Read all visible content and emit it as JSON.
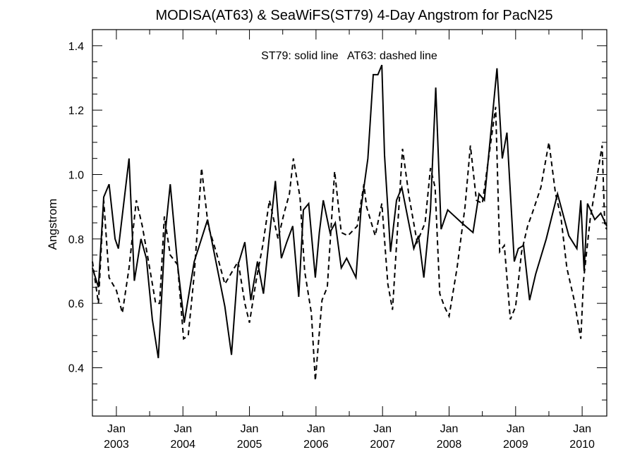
{
  "chart_data": {
    "type": "line",
    "title": "MODISA(AT63) & SeaWiFS(ST79) 4-Day Angstrom for PacN25",
    "annotation": "ST79: solid line   AT63: dashed line",
    "xlabel": "",
    "ylabel": "Angstrom",
    "xlim": [
      2002.64,
      2010.37
    ],
    "ylim": [
      0.25,
      1.45
    ],
    "yticks": [
      0.4,
      0.6,
      0.8,
      1.0,
      1.2,
      1.4
    ],
    "ytick_labels": [
      "0.4",
      "0.6",
      "0.8",
      "1.0",
      "1.2",
      "1.4"
    ],
    "xticks": [
      2003,
      2004,
      2005,
      2006,
      2007,
      2008,
      2009,
      2010
    ],
    "xtick_labels": [
      {
        "month": "Jan",
        "year": "2003"
      },
      {
        "month": "Jan",
        "year": "2004"
      },
      {
        "month": "Jan",
        "year": "2005"
      },
      {
        "month": "Jan",
        "year": "2006"
      },
      {
        "month": "Jan",
        "year": "2007"
      },
      {
        "month": "Jan",
        "year": "2008"
      },
      {
        "month": "Jan",
        "year": "2009"
      },
      {
        "month": "Jan",
        "year": "2010"
      }
    ],
    "grid": false,
    "series": [
      {
        "name": "ST79",
        "style": "solid",
        "color": "#000000",
        "x": [
          2002.64,
          2002.73,
          2002.81,
          2002.89,
          2002.98,
          2003.03,
          2003.19,
          2003.27,
          2003.37,
          2003.45,
          2003.54,
          2003.63,
          2003.73,
          2003.81,
          2003.92,
          2004.02,
          2004.17,
          2004.37,
          2004.63,
          2004.73,
          2004.83,
          2004.93,
          2005.02,
          2005.12,
          2005.21,
          2005.29,
          2005.39,
          2005.48,
          2005.56,
          2005.65,
          2005.74,
          2005.81,
          2005.89,
          2005.99,
          2006.05,
          2006.11,
          2006.21,
          2006.29,
          2006.38,
          2006.46,
          2006.6,
          2006.68,
          2006.78,
          2006.86,
          2006.93,
          2006.99,
          2007.03,
          2007.12,
          2007.21,
          2007.29,
          2007.47,
          2007.54,
          2007.62,
          2007.72,
          2007.8,
          2007.88,
          2007.98,
          2008.19,
          2008.36,
          2008.45,
          2008.53,
          2008.72,
          2008.8,
          2008.87,
          2008.98,
          2009.04,
          2009.12,
          2009.21,
          2009.3,
          2009.46,
          2009.63,
          2009.8,
          2009.92,
          2009.98,
          2010.03,
          2010.08,
          2010.19,
          2010.28,
          2010.37
        ],
        "y": [
          0.71,
          0.65,
          0.93,
          0.97,
          0.8,
          0.77,
          1.05,
          0.67,
          0.8,
          0.74,
          0.55,
          0.43,
          0.81,
          0.97,
          0.72,
          0.54,
          0.73,
          0.86,
          0.59,
          0.44,
          0.72,
          0.79,
          0.61,
          0.73,
          0.63,
          0.79,
          0.98,
          0.74,
          0.79,
          0.84,
          0.62,
          0.89,
          0.91,
          0.68,
          0.82,
          0.92,
          0.82,
          0.85,
          0.71,
          0.74,
          0.68,
          0.9,
          1.05,
          1.31,
          1.31,
          1.34,
          1.06,
          0.76,
          0.92,
          0.96,
          0.77,
          0.81,
          0.68,
          0.89,
          1.27,
          0.83,
          0.89,
          0.85,
          0.82,
          0.94,
          0.92,
          1.33,
          1.05,
          1.13,
          0.73,
          0.77,
          0.78,
          0.61,
          0.69,
          0.8,
          0.94,
          0.81,
          0.77,
          0.92,
          0.7,
          0.91,
          0.86,
          0.88,
          0.84
        ]
      },
      {
        "name": "AT63",
        "style": "dashed",
        "color": "#000000",
        "x": [
          2002.64,
          2002.73,
          2002.81,
          2002.89,
          2003.0,
          2003.09,
          2003.19,
          2003.3,
          2003.39,
          2003.5,
          2003.59,
          2003.65,
          2003.72,
          2003.81,
          2003.92,
          2004.01,
          2004.08,
          2004.17,
          2004.28,
          2004.38,
          2004.5,
          2004.63,
          2004.83,
          2004.93,
          2005.0,
          2005.1,
          2005.2,
          2005.3,
          2005.43,
          2005.52,
          2005.6,
          2005.66,
          2005.76,
          2005.83,
          2005.93,
          2005.99,
          2006.09,
          2006.17,
          2006.28,
          2006.38,
          2006.48,
          2006.62,
          2006.72,
          2006.76,
          2006.89,
          2006.99,
          2007.08,
          2007.15,
          2007.3,
          2007.4,
          2007.52,
          2007.64,
          2007.72,
          2007.79,
          2007.86,
          2007.93,
          2008.0,
          2008.12,
          2008.24,
          2008.32,
          2008.41,
          2008.5,
          2008.6,
          2008.7,
          2008.76,
          2008.83,
          2008.92,
          2009.0,
          2009.09,
          2009.18,
          2009.25,
          2009.38,
          2009.5,
          2009.6,
          2009.68,
          2009.77,
          2009.88,
          2009.98,
          2010.02,
          2010.12,
          2010.3,
          2010.34,
          2010.37
        ],
        "y": [
          0.73,
          0.6,
          0.92,
          0.68,
          0.64,
          0.57,
          0.71,
          0.92,
          0.84,
          0.71,
          0.6,
          0.6,
          0.87,
          0.75,
          0.72,
          0.49,
          0.5,
          0.69,
          1.02,
          0.84,
          0.76,
          0.66,
          0.73,
          0.6,
          0.54,
          0.67,
          0.78,
          0.92,
          0.8,
          0.88,
          0.94,
          1.05,
          0.93,
          0.7,
          0.57,
          0.36,
          0.61,
          0.65,
          1.01,
          0.82,
          0.81,
          0.84,
          0.97,
          0.9,
          0.81,
          0.91,
          0.66,
          0.58,
          1.08,
          0.93,
          0.79,
          0.85,
          1.02,
          0.96,
          0.63,
          0.59,
          0.56,
          0.71,
          0.9,
          1.09,
          0.92,
          0.91,
          1.06,
          1.21,
          0.76,
          0.78,
          0.55,
          0.59,
          0.76,
          0.84,
          0.88,
          0.96,
          1.1,
          0.94,
          0.87,
          0.71,
          0.61,
          0.49,
          0.67,
          0.86,
          1.09,
          0.84,
          0.83
        ]
      }
    ]
  }
}
